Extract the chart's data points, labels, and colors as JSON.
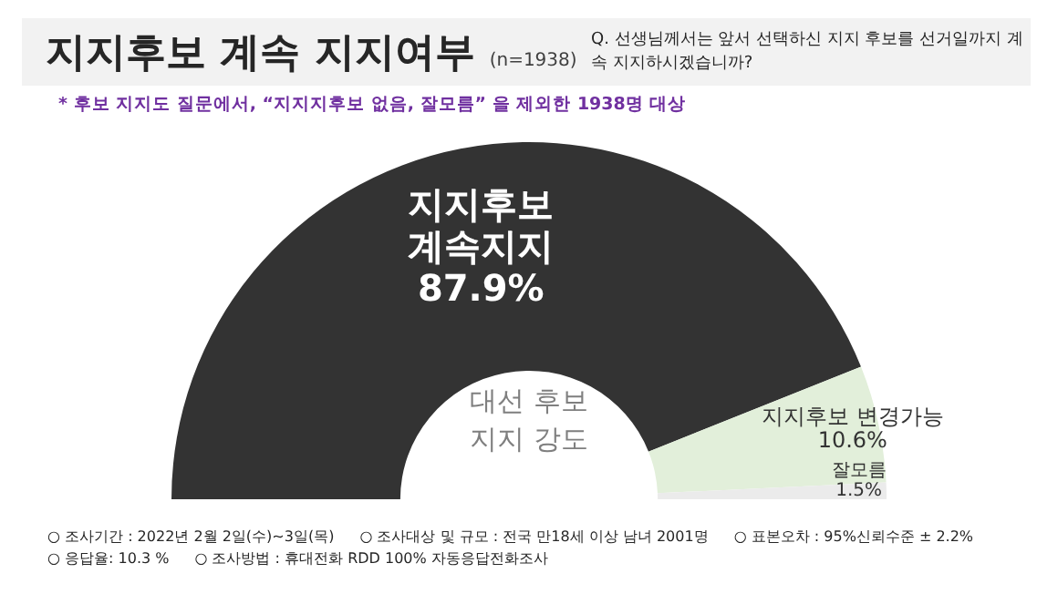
{
  "chart_data": {
    "type": "donut",
    "title": "지지후보 계속 지지여부",
    "subtitle": "(n=1938)",
    "categories": [
      "지지후보 계속지지",
      "지지후보 변경가능",
      "잘모름"
    ],
    "values": [
      87.9,
      10.6,
      1.5
    ],
    "value_labels": [
      "87.9%",
      "10.6%",
      "1.5%"
    ],
    "colors": [
      "#333333",
      "#e2efda",
      "#ebebeb"
    ],
    "legend": false,
    "annotations": [
      "Q. 선생님께서는 앞서 선택하신 지지 후보를 선거일까지 계속 지지하시겠습니까?",
      "* 후보 지지도 질문에서, “지지지후보 없음, 잘모름” 을 제외한 1938명 대상",
      "대선 후보 지지 강도",
      "○ 조사기간 : 2022년 2월 2일(수)~3일(목)",
      "○ 조사대상 및 규모 : 전국 만18세 이상 남녀 2001명",
      "○ 표본오차 : 95%신뢰수준 ± 2.2%",
      "○ 응답율: 10.3 %",
      "○ 조사방법 : 휴대전화 RDD 100% 자동응답전화조사"
    ]
  }
}
